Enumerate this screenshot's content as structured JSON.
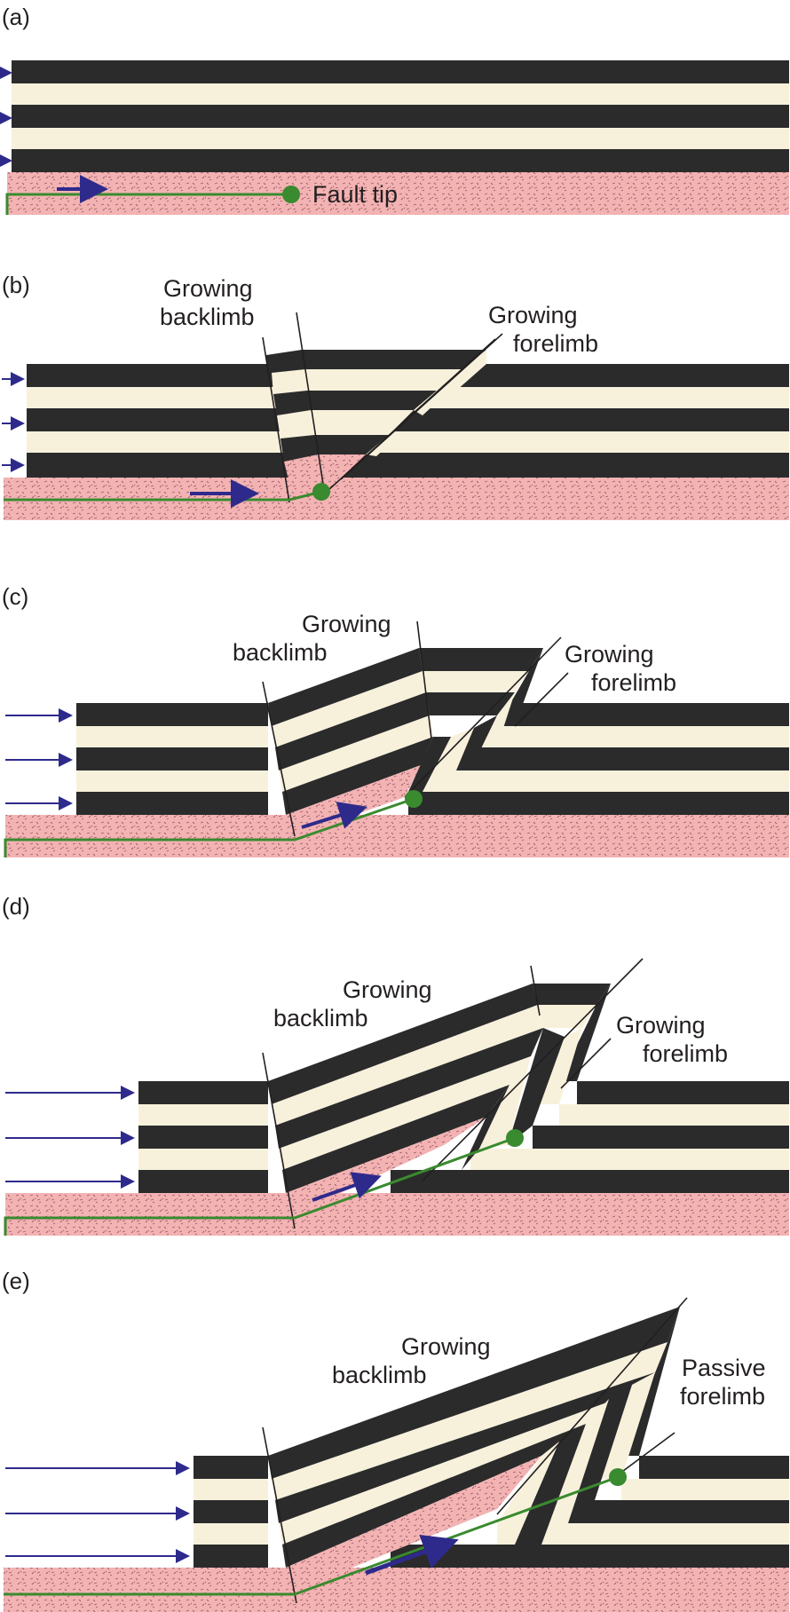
{
  "figure": {
    "panels": [
      {
        "label": "(a)",
        "annotations": [
          "Fault tip"
        ]
      },
      {
        "label": "(b)",
        "annotations": [
          "Growing",
          "backlimb",
          "Growing",
          "forelimb"
        ]
      },
      {
        "label": "(c)",
        "annotations": [
          "Growing",
          "backlimb",
          "Growing",
          "forelimb"
        ]
      },
      {
        "label": "(d)",
        "annotations": [
          "Growing",
          "backlimb",
          "Growing",
          "forelimb"
        ]
      },
      {
        "label": "(e)",
        "annotations": [
          "Growing",
          "backlimb",
          "Passive",
          "forelimb"
        ]
      }
    ]
  },
  "colors": {
    "dark_layer": "#2b2b2b",
    "light_layer": "#f7f1dc",
    "basement": "#f3b3b3",
    "basement_speckle": "#9a5b6a",
    "fault": "#3a8a2f",
    "fault_tip": "#3a8a2f",
    "arrow": "#2e2a8c",
    "axial_line": "#231f20"
  }
}
